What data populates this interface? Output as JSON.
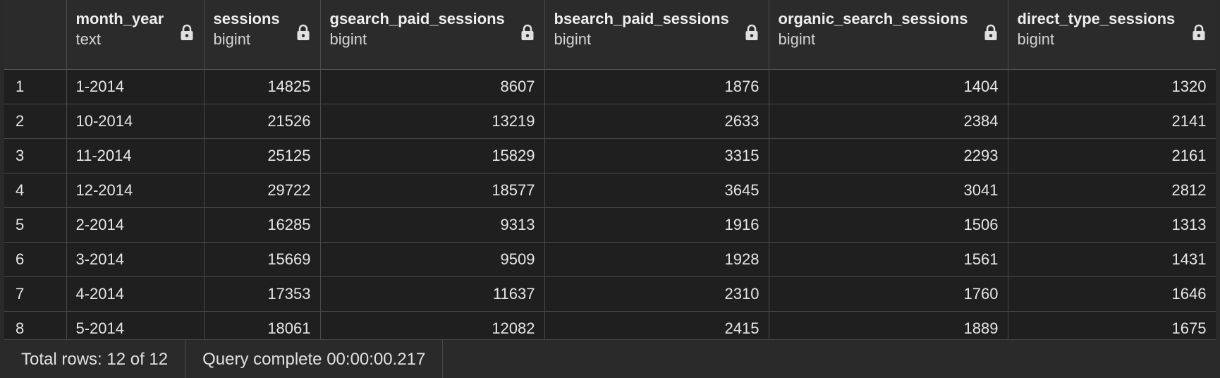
{
  "grid": {
    "columns": [
      {
        "name": "month_year",
        "type": "text"
      },
      {
        "name": "sessions",
        "type": "bigint"
      },
      {
        "name": "gsearch_paid_sessions",
        "type": "bigint"
      },
      {
        "name": "bsearch_paid_sessions",
        "type": "bigint"
      },
      {
        "name": "organic_search_sessions",
        "type": "bigint"
      },
      {
        "name": "direct_type_sessions",
        "type": "bigint"
      }
    ],
    "rows": [
      {
        "n": "1",
        "cells": [
          "1-2014",
          "14825",
          "8607",
          "1876",
          "1404",
          "1320"
        ]
      },
      {
        "n": "2",
        "cells": [
          "10-2014",
          "21526",
          "13219",
          "2633",
          "2384",
          "2141"
        ]
      },
      {
        "n": "3",
        "cells": [
          "11-2014",
          "25125",
          "15829",
          "3315",
          "2293",
          "2161"
        ]
      },
      {
        "n": "4",
        "cells": [
          "12-2014",
          "29722",
          "18577",
          "3645",
          "3041",
          "2812"
        ]
      },
      {
        "n": "5",
        "cells": [
          "2-2014",
          "16285",
          "9313",
          "1916",
          "1506",
          "1313"
        ]
      },
      {
        "n": "6",
        "cells": [
          "3-2014",
          "15669",
          "9509",
          "1928",
          "1561",
          "1431"
        ]
      },
      {
        "n": "7",
        "cells": [
          "4-2014",
          "17353",
          "11637",
          "2310",
          "1760",
          "1646"
        ]
      },
      {
        "n": "8",
        "cells": [
          "5-2014",
          "18061",
          "12082",
          "2415",
          "1889",
          "1675"
        ]
      }
    ]
  },
  "status": {
    "total_rows": "Total rows: 12 of 12",
    "query_status": "Query complete 00:00:00.217"
  },
  "colors": {
    "background": "#1f1f1f",
    "header": "#2b2b2b",
    "border": "#4a4a4a",
    "text": "#e6e6e6"
  }
}
